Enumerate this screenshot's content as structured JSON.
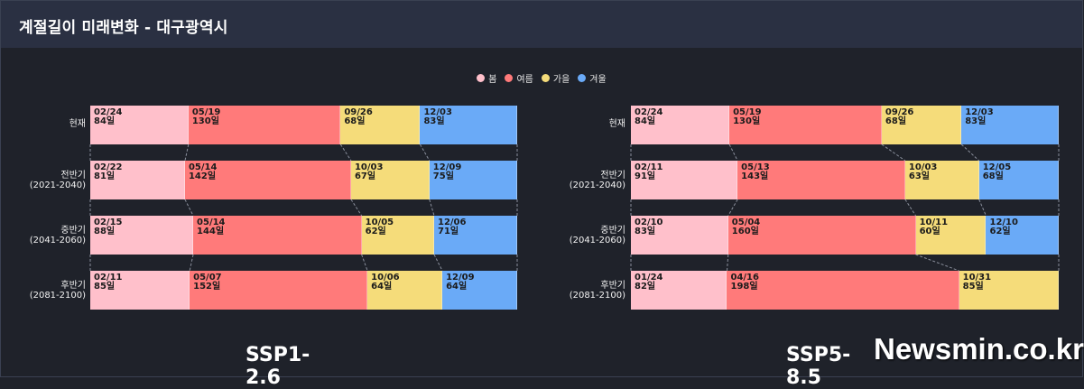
{
  "header": {
    "title": "계절길이 미래변화 - 대구광역시"
  },
  "legend": [
    {
      "label": "봄",
      "color": "#ffc0cb"
    },
    {
      "label": "여름",
      "color": "#ff7a7a"
    },
    {
      "label": "가을",
      "color": "#f5dc7a"
    },
    {
      "label": "겨울",
      "color": "#6aaaf7"
    }
  ],
  "watermark": "Newsmin.co.kr",
  "chart_data": [
    {
      "type": "bar",
      "title": "SSP1-2.6",
      "categories": [
        "현재",
        "전반기\n(2021-2040)",
        "중반기\n(2041-2060)",
        "후반기\n(2081-2100)"
      ],
      "series": [
        {
          "name": "봄",
          "color": "#ffc0cb",
          "start": [
            "02/24",
            "02/22",
            "02/15",
            "02/11"
          ],
          "values": [
            84,
            81,
            88,
            85
          ]
        },
        {
          "name": "여름",
          "color": "#ff7a7a",
          "start": [
            "05/19",
            "05/14",
            "05/14",
            "05/07"
          ],
          "values": [
            130,
            142,
            144,
            152
          ]
        },
        {
          "name": "가을",
          "color": "#f5dc7a",
          "start": [
            "09/26",
            "10/03",
            "10/05",
            "10/06"
          ],
          "values": [
            68,
            67,
            62,
            64
          ]
        },
        {
          "name": "겨울",
          "color": "#6aaaf7",
          "start": [
            "12/03",
            "12/09",
            "12/06",
            "12/09"
          ],
          "values": [
            83,
            75,
            71,
            64
          ]
        }
      ],
      "unit": "일"
    },
    {
      "type": "bar",
      "title": "SSP5-8.5",
      "categories": [
        "현재",
        "전반기\n(2021-2040)",
        "중반기\n(2041-2060)",
        "후반기\n(2081-2100)"
      ],
      "series": [
        {
          "name": "봄",
          "color": "#ffc0cb",
          "start": [
            "02/24",
            "02/11",
            "02/10",
            "01/24"
          ],
          "values": [
            84,
            91,
            83,
            82
          ]
        },
        {
          "name": "여름",
          "color": "#ff7a7a",
          "start": [
            "05/19",
            "05/13",
            "05/04",
            "04/16"
          ],
          "values": [
            130,
            143,
            160,
            198
          ]
        },
        {
          "name": "가을",
          "color": "#f5dc7a",
          "start": [
            "09/26",
            "10/03",
            "10/11",
            "10/31"
          ],
          "values": [
            68,
            63,
            60,
            85
          ]
        },
        {
          "name": "겨울",
          "color": "#6aaaf7",
          "start": [
            "12/03",
            "12/05",
            "12/10",
            ""
          ],
          "values": [
            83,
            68,
            62,
            0
          ]
        }
      ],
      "unit": "일"
    }
  ]
}
